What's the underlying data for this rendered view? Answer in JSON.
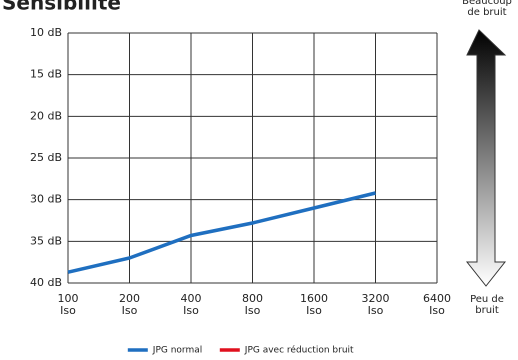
{
  "chart_data": {
    "type": "line",
    "title": "Sensibilité",
    "categories": [
      "100 Iso",
      "200 Iso",
      "400 Iso",
      "800 Iso",
      "1600 Iso",
      "3200 Iso",
      "6400 Iso"
    ],
    "series": [
      {
        "name": "JPG normal",
        "color": "#1f6fc0",
        "values": [
          38.7,
          37,
          34.3,
          32.8,
          31,
          29.2,
          null
        ]
      },
      {
        "name": "JPG avec réduction bruit",
        "color": "#e0101e",
        "values": [
          null,
          null,
          null,
          null,
          null,
          null,
          null
        ]
      }
    ],
    "ylim": [
      10,
      40
    ],
    "invert_y": true,
    "yticks": [
      {
        "value": 10,
        "label": "10 dB"
      },
      {
        "value": 15,
        "label": "15 dB"
      },
      {
        "value": 20,
        "label": "20 dB"
      },
      {
        "value": 25,
        "label": "25 dB"
      },
      {
        "value": 30,
        "label": "30 dB"
      },
      {
        "value": 35,
        "label": "35 dB"
      },
      {
        "value": 40,
        "label": "40 dB"
      }
    ],
    "grid": true,
    "legend": "bottom",
    "annotations": [
      "Beaucoup de bruit",
      "Peu de bruit"
    ]
  }
}
